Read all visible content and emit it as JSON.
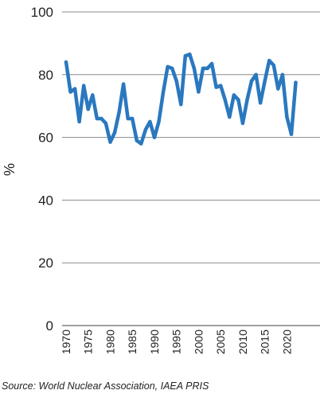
{
  "chart_data": {
    "type": "line",
    "title": "",
    "xlabel": "",
    "ylabel": "%",
    "ylim": [
      0,
      100
    ],
    "yticks": [
      0,
      20,
      40,
      60,
      80,
      100
    ],
    "xticks": [
      1970,
      1975,
      1980,
      1985,
      1990,
      1995,
      2000,
      2005,
      2010,
      2015,
      2020
    ],
    "xlim": [
      1970,
      2022
    ],
    "grid": "horizontal",
    "legend": "none",
    "line_color": "#2a78bf",
    "series": [
      {
        "x": [
          1970,
          1971,
          1972,
          1973,
          1974,
          1975,
          1976,
          1977,
          1978,
          1979,
          1980,
          1981,
          1982,
          1983,
          1984,
          1985,
          1986,
          1987,
          1988,
          1989,
          1990,
          1991,
          1992,
          1993,
          1994,
          1995,
          1996,
          1997,
          1998,
          1999,
          2000,
          2001,
          2002,
          2003,
          2004,
          2005,
          2006,
          2007,
          2008,
          2009,
          2010,
          2011,
          2012,
          2013,
          2014,
          2015,
          2016,
          2017,
          2018,
          2019,
          2020,
          2021,
          2022
        ],
        "values": [
          84,
          74.5,
          75.5,
          65,
          76.5,
          69,
          73.5,
          66,
          66,
          64.5,
          58.5,
          61.5,
          68,
          77,
          66,
          66,
          59,
          58,
          62.5,
          65,
          60,
          65,
          74.5,
          82.5,
          82,
          78,
          70.5,
          86,
          86.5,
          82,
          74.5,
          82,
          82,
          83.5,
          76,
          76.5,
          72,
          66.5,
          73.5,
          72,
          64.5,
          72,
          78,
          80,
          71,
          78,
          84.5,
          83,
          75.5,
          80,
          66.5,
          61,
          77.5
        ]
      }
    ]
  },
  "source_text": "Source: World Nuclear Association, IAEA PRIS"
}
